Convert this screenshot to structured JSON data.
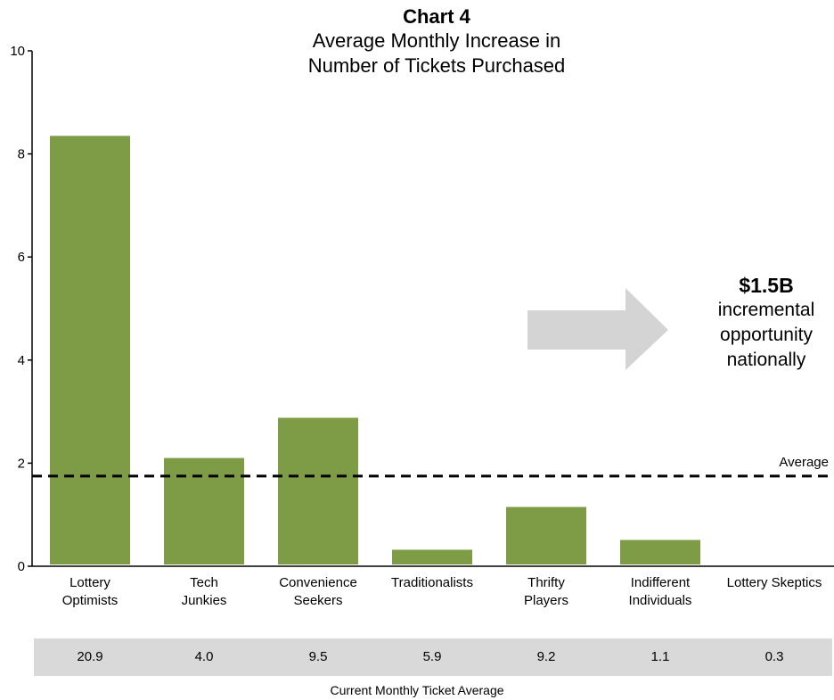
{
  "chart_data": {
    "type": "bar",
    "title": "Chart 4",
    "subtitle_lines": [
      "Average Monthly Increase in",
      "Number of Tickets Purchased"
    ],
    "categories": [
      [
        "Lottery",
        "Optimists"
      ],
      [
        "Tech",
        "Junkies"
      ],
      [
        "Convenience",
        "Seekers"
      ],
      [
        "Traditionalists"
      ],
      [
        "Thrifty",
        "Players"
      ],
      [
        "Indifferent",
        "Individuals"
      ],
      [
        "Lottery Skeptics"
      ]
    ],
    "values": [
      8.35,
      2.1,
      2.88,
      0.32,
      1.15,
      0.51,
      0
    ],
    "ylim": [
      0,
      10
    ],
    "yticks": [
      "0",
      "2",
      "4",
      "6",
      "8",
      "10"
    ],
    "average": {
      "label": "Average",
      "value": 1.75
    },
    "bar_color": "#7e9b46",
    "callout": {
      "value": "$1.5B",
      "lines": [
        "incremental",
        "opportunity",
        "nationally"
      ],
      "arrow_color": "#d4d4d4"
    },
    "current_monthly_ticket_average": {
      "label": "Current Monthly Ticket Average",
      "values": [
        "20.9",
        "4.0",
        "9.5",
        "5.9",
        "9.2",
        "1.1",
        "0.3"
      ]
    },
    "grid": false
  }
}
